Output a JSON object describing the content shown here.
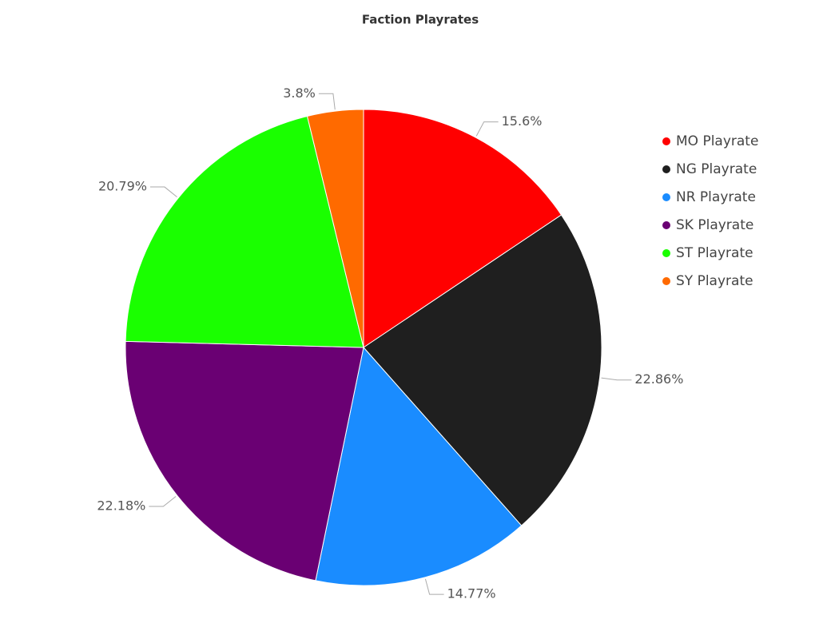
{
  "chart_data": {
    "type": "pie",
    "title": "Faction Playrates",
    "categories": [
      "MO Playrate",
      "NG Playrate",
      "NR Playrate",
      "SK Playrate",
      "ST Playrate",
      "SY Playrate"
    ],
    "values": [
      15.6,
      22.86,
      14.77,
      22.18,
      20.79,
      3.8
    ],
    "value_labels": [
      "15.6%",
      "22.86%",
      "14.77%",
      "22.18%",
      "20.79%",
      "3.8%"
    ],
    "colors": [
      "#ff0000",
      "#1f1f1f",
      "#1a8cff",
      "#6a0073",
      "#1aff00",
      "#ff6a00"
    ]
  }
}
